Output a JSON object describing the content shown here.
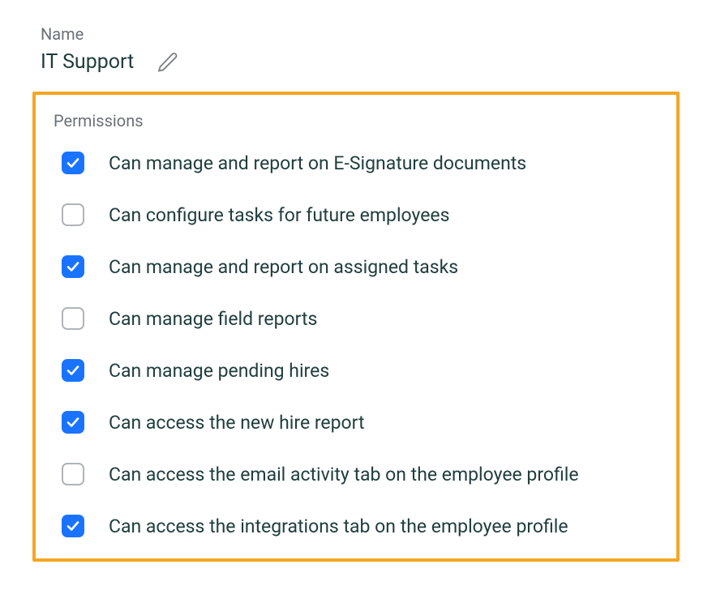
{
  "name_section": {
    "label": "Name",
    "value": "IT Support"
  },
  "permissions_section": {
    "label": "Permissions"
  },
  "permissions": [
    {
      "label": "Can manage and report on E-Signature documents",
      "checked": true
    },
    {
      "label": "Can configure tasks for future employees",
      "checked": false
    },
    {
      "label": "Can manage and report on assigned tasks",
      "checked": true
    },
    {
      "label": "Can manage field reports",
      "checked": false
    },
    {
      "label": "Can manage pending hires",
      "checked": true
    },
    {
      "label": "Can access the new hire report",
      "checked": true
    },
    {
      "label": "Can access the email activity tab on the employee profile",
      "checked": false
    },
    {
      "label": "Can access the integrations tab on the employee profile",
      "checked": true
    }
  ],
  "colors": {
    "highlight_border": "#f5a623",
    "checkbox_checked_bg": "#1a73ff",
    "checkbox_unchecked_border": "#b0b4b8",
    "label_muted": "#6a7178",
    "text_primary": "#203e3e",
    "background": "#ffffff"
  }
}
